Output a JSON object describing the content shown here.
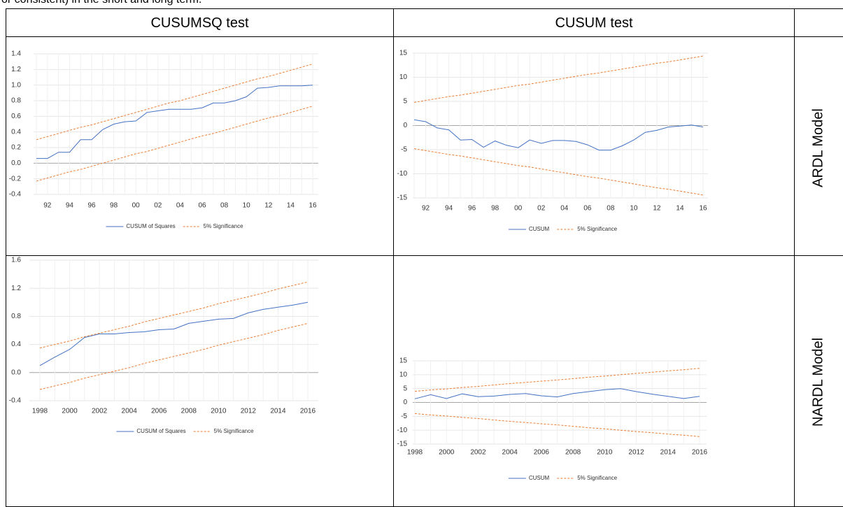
{
  "intro": "or consistent) in the short and long term.",
  "table": {
    "headers": [
      "CUSUMSQ test",
      "CUSUM test"
    ],
    "row_labels": [
      "ARDL Model",
      "NARDL Model"
    ]
  },
  "chart_data": [
    {
      "type": "line",
      "categories": [
        null,
        "92",
        null,
        "94",
        null,
        "96",
        null,
        "98",
        null,
        "00",
        null,
        "02",
        null,
        "04",
        null,
        "06",
        null,
        "08",
        null,
        "10",
        null,
        "12",
        null,
        "14",
        null,
        "16"
      ],
      "ylim": [
        -0.4,
        1.4
      ],
      "yticks": [
        -0.4,
        -0.2,
        {
          "value": 0,
          "label": "0.0"
        },
        0.2,
        0.4,
        0.6,
        0.8,
        {
          "value": 1,
          "label": "1.0"
        },
        1.2,
        1.4
      ],
      "grid": true,
      "legend": "bottom",
      "series": [
        {
          "name": "CUSUM of Squares",
          "color": "#4472c4",
          "style": "solid",
          "values": [
            0.06,
            0.06,
            0.14,
            0.14,
            0.3,
            0.3,
            0.43,
            0.5,
            0.53,
            0.54,
            0.65,
            0.67,
            0.69,
            0.69,
            0.69,
            0.71,
            0.77,
            0.77,
            0.8,
            0.85,
            0.96,
            0.97,
            0.99,
            0.99,
            0.99,
            1.0
          ]
        },
        {
          "name": "5% Significance",
          "color": "#ed7d31",
          "style": "dashed",
          "values": [
            0.3,
            0.34,
            0.38,
            0.42,
            0.46,
            0.49,
            0.53,
            0.57,
            0.61,
            0.65,
            0.69,
            0.73,
            0.77,
            0.8,
            0.84,
            0.88,
            0.92,
            0.96,
            1.0,
            1.04,
            1.08,
            1.11,
            1.15,
            1.19,
            1.23,
            1.27
          ]
        },
        {
          "color": "#ed7d31",
          "style": "dashed",
          "values": [
            -0.23,
            -0.19,
            -0.15,
            -0.11,
            -0.08,
            -0.04,
            0.0,
            0.04,
            0.08,
            0.12,
            0.15,
            0.19,
            0.23,
            0.27,
            0.31,
            0.35,
            0.38,
            0.42,
            0.46,
            0.5,
            0.54,
            0.58,
            0.61,
            0.65,
            0.69,
            0.73
          ]
        }
      ]
    },
    {
      "type": "line",
      "categories": [
        null,
        "92",
        null,
        "94",
        null,
        "96",
        null,
        "98",
        null,
        "00",
        null,
        "02",
        null,
        "04",
        null,
        "06",
        null,
        "08",
        null,
        "10",
        null,
        "12",
        null,
        "14",
        null,
        "16"
      ],
      "ylim": [
        -15,
        15
      ],
      "yticks": [
        -15,
        -10,
        -5,
        0,
        5,
        10,
        15
      ],
      "grid": true,
      "legend": "bottom",
      "series": [
        {
          "name": "CUSUM",
          "color": "#4472c4",
          "style": "solid",
          "values": [
            1.2,
            0.8,
            -0.5,
            -0.9,
            -3.0,
            -2.9,
            -4.5,
            -3.2,
            -4.1,
            -4.6,
            -3.0,
            -3.7,
            -3.1,
            -3.1,
            -3.3,
            -4.0,
            -5.1,
            -5.1,
            -4.2,
            -3.0,
            -1.4,
            -1.0,
            -0.3,
            -0.1,
            0.1,
            -0.3
          ]
        },
        {
          "name": "5% Significance",
          "color": "#ed7d31",
          "style": "dashed",
          "values": [
            4.8,
            5.2,
            5.6,
            6.0,
            6.3,
            6.7,
            7.1,
            7.5,
            7.9,
            8.3,
            8.6,
            9.0,
            9.4,
            9.8,
            10.2,
            10.6,
            10.9,
            11.3,
            11.7,
            12.1,
            12.5,
            12.9,
            13.2,
            13.6,
            14.0,
            14.4
          ]
        },
        {
          "color": "#ed7d31",
          "style": "dashed",
          "values": [
            -4.8,
            -5.2,
            -5.6,
            -6.0,
            -6.3,
            -6.7,
            -7.1,
            -7.5,
            -7.9,
            -8.3,
            -8.6,
            -9.0,
            -9.4,
            -9.8,
            -10.2,
            -10.6,
            -10.9,
            -11.3,
            -11.7,
            -12.1,
            -12.5,
            -12.9,
            -13.2,
            -13.6,
            -14.0,
            -14.4
          ]
        }
      ]
    },
    {
      "type": "line",
      "categories": [
        "1998",
        null,
        "2000",
        null,
        "2002",
        null,
        "2004",
        null,
        "2006",
        null,
        "2008",
        null,
        "2010",
        null,
        "2012",
        null,
        "2014",
        null,
        "2016"
      ],
      "ylim": [
        -0.4,
        1.6
      ],
      "yticks": [
        -0.4,
        {
          "value": 0,
          "label": "0.0"
        },
        0.4,
        0.8,
        1.2,
        1.6
      ],
      "grid": true,
      "legend": "bottom",
      "series": [
        {
          "name": "CUSUM of Squares",
          "color": "#4472c4",
          "style": "solid",
          "values": [
            0.1,
            0.22,
            0.33,
            0.5,
            0.55,
            0.55,
            0.57,
            0.58,
            0.61,
            0.62,
            0.7,
            0.73,
            0.76,
            0.77,
            0.85,
            0.9,
            0.93,
            0.96,
            1.0
          ]
        },
        {
          "name": "5% Significance",
          "color": "#ed7d31",
          "style": "dashed",
          "values": [
            0.35,
            0.4,
            0.45,
            0.51,
            0.56,
            0.61,
            0.66,
            0.72,
            0.77,
            0.82,
            0.87,
            0.92,
            0.98,
            1.03,
            1.08,
            1.13,
            1.19,
            1.24,
            1.29
          ]
        },
        {
          "color": "#ed7d31",
          "style": "dashed",
          "values": [
            -0.24,
            -0.19,
            -0.14,
            -0.08,
            -0.03,
            0.02,
            0.07,
            0.13,
            0.18,
            0.23,
            0.28,
            0.33,
            0.39,
            0.44,
            0.49,
            0.54,
            0.6,
            0.65,
            0.7
          ]
        }
      ]
    },
    {
      "type": "line",
      "categories": [
        "1998",
        null,
        "2000",
        null,
        "2002",
        null,
        "2004",
        null,
        "2006",
        null,
        "2008",
        null,
        "2010",
        null,
        "2012",
        null,
        "2014",
        null,
        "2016"
      ],
      "ylim": [
        -15,
        15
      ],
      "yticks": [
        -15,
        -10,
        -5,
        0,
        5,
        10,
        15
      ],
      "grid": true,
      "legend": "bottom",
      "series": [
        {
          "name": "CUSUM",
          "color": "#4472c4",
          "style": "solid",
          "values": [
            1.3,
            2.8,
            1.4,
            3.1,
            2.1,
            2.3,
            2.9,
            3.2,
            2.4,
            2.0,
            3.2,
            3.9,
            4.6,
            5.0,
            3.9,
            3.0,
            2.2,
            1.4,
            2.2
          ]
        },
        {
          "name": "5% Significance",
          "color": "#ed7d31",
          "style": "dashed",
          "values": [
            4.0,
            4.5,
            4.9,
            5.4,
            5.8,
            6.3,
            6.8,
            7.2,
            7.7,
            8.1,
            8.6,
            9.1,
            9.5,
            10.0,
            10.5,
            10.9,
            11.4,
            11.8,
            12.3
          ]
        },
        {
          "color": "#ed7d31",
          "style": "dashed",
          "values": [
            -4.0,
            -4.5,
            -4.9,
            -5.4,
            -5.8,
            -6.3,
            -6.8,
            -7.2,
            -7.7,
            -8.1,
            -8.6,
            -9.1,
            -9.5,
            -10.0,
            -10.5,
            -10.9,
            -11.4,
            -11.8,
            -12.3
          ]
        }
      ]
    }
  ]
}
